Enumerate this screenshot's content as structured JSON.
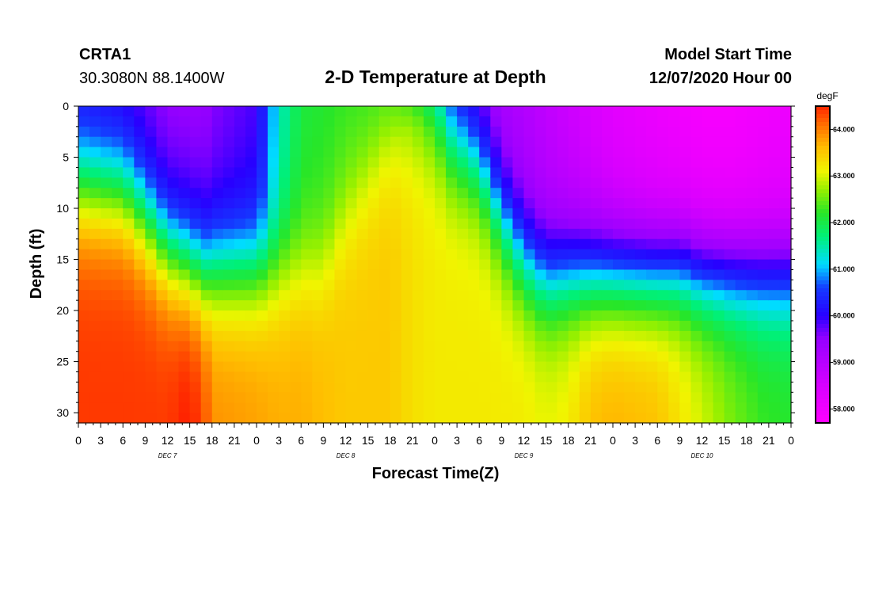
{
  "header": {
    "station": "CRTA1",
    "coords": "30.3080N 88.1400W",
    "title": "2-D Temperature at Depth",
    "model_start_label": "Model Start Time",
    "model_start_value": "12/07/2020 Hour 00"
  },
  "chart_data": {
    "type": "heatmap",
    "title": "2-D Temperature at Depth",
    "xlabel": "Forecast Time(Z)",
    "ylabel": "Depth (ft)",
    "x_ticks": [
      "0",
      "3",
      "6",
      "9",
      "12",
      "15",
      "18",
      "21",
      "0",
      "3",
      "6",
      "9",
      "12",
      "15",
      "18",
      "21",
      "0",
      "3",
      "6",
      "9",
      "12",
      "15",
      "18",
      "21",
      "0",
      "3",
      "6",
      "9",
      "12",
      "15",
      "18",
      "21",
      "0"
    ],
    "x_range_hours": [
      0,
      96
    ],
    "day_labels": [
      {
        "label": "DEC 7",
        "hour": 12
      },
      {
        "label": "DEC 8",
        "hour": 36
      },
      {
        "label": "DEC 9",
        "hour": 60
      },
      {
        "label": "DEC 10",
        "hour": 84
      }
    ],
    "y_ticks": [
      "0",
      "5",
      "10",
      "15",
      "20",
      "25",
      "30"
    ],
    "ylim": [
      0,
      31
    ],
    "colorbar": {
      "unit": "degF",
      "ticks": [
        "64.000",
        "63.000",
        "62.000",
        "61.000",
        "60.000",
        "59.000",
        "58.000"
      ],
      "range": [
        57.7,
        64.5
      ]
    },
    "time_hours": [
      0,
      6,
      9,
      12,
      15,
      17,
      18,
      24,
      27,
      30,
      33,
      36,
      42,
      45,
      48,
      50,
      54,
      57,
      60,
      63,
      66,
      69,
      72,
      78,
      81,
      84,
      88,
      92,
      96
    ],
    "thermocline_depth_ft": [
      8,
      8.5,
      11,
      14,
      15.5,
      16.5,
      16,
      16,
      16,
      16,
      16,
      11,
      4,
      2,
      2,
      4,
      6,
      11,
      15,
      17,
      16.5,
      16.5,
      16.5,
      16.5,
      16,
      16.5,
      16.5,
      16.5,
      16.5
    ],
    "surface_temp_degF": [
      60.2,
      60.0,
      59.8,
      59.6,
      59.6,
      59.6,
      59.7,
      60.0,
      61.5,
      62.2,
      62.3,
      62.4,
      62.4,
      62.1,
      61.2,
      60.3,
      59.6,
      59.3,
      59.2,
      59.0,
      58.8,
      58.6,
      58.4,
      58.2,
      58.1,
      58.0,
      58.0,
      58.1,
      58.2
    ],
    "bottom_temp_degF": [
      64.4,
      64.4,
      64.4,
      64.4,
      64.6,
      64.3,
      63.9,
      63.8,
      63.7,
      63.7,
      63.6,
      63.5,
      63.5,
      63.3,
      63.2,
      63.2,
      63.2,
      63.2,
      63.2,
      63.1,
      63.2,
      63.6,
      63.7,
      63.6,
      63.3,
      63.0,
      62.6,
      62.3,
      62.2
    ]
  }
}
